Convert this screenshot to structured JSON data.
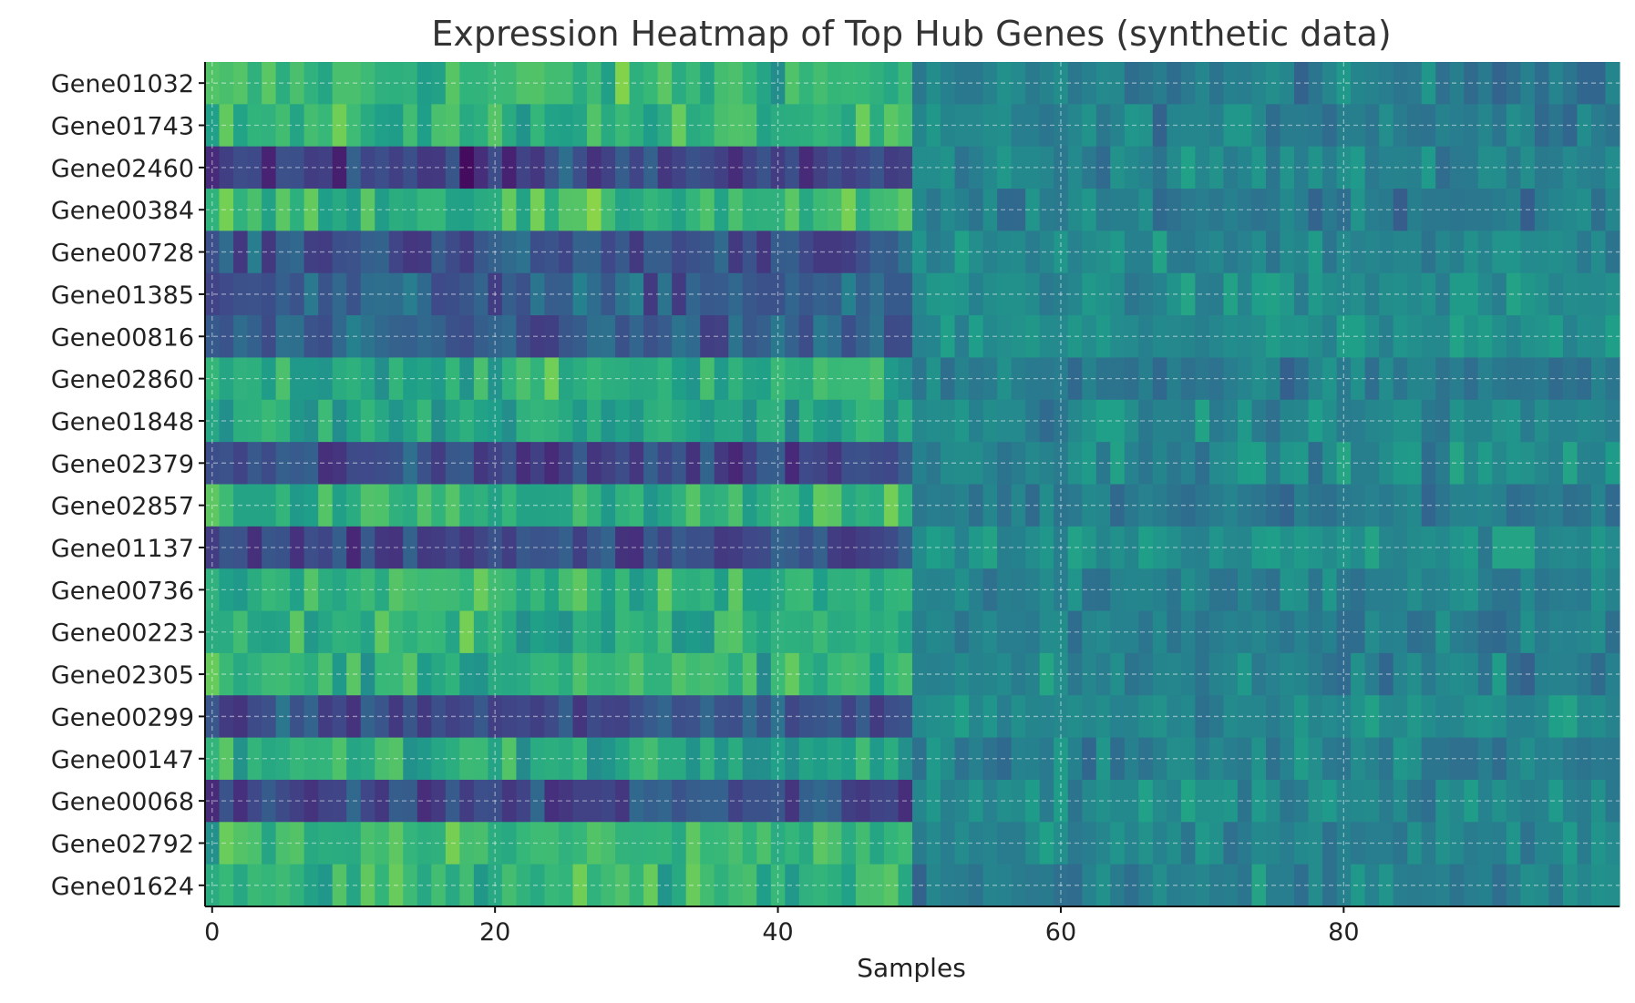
{
  "chart_data": {
    "type": "heatmap",
    "title": "Expression Heatmap of Top Hub Genes (synthetic data)",
    "xlabel": "Samples",
    "ylabel": "",
    "xlim": [
      -0.5,
      99.5
    ],
    "xticks": [
      0,
      20,
      40,
      60,
      80
    ],
    "grid": true,
    "colormap": "viridis",
    "n_samples": 100,
    "genes": [
      "Gene01032",
      "Gene01743",
      "Gene02460",
      "Gene00384",
      "Gene00728",
      "Gene01385",
      "Gene00816",
      "Gene02860",
      "Gene01848",
      "Gene02379",
      "Gene02857",
      "Gene01137",
      "Gene00736",
      "Gene00223",
      "Gene02305",
      "Gene00299",
      "Gene00147",
      "Gene00068",
      "Gene02792",
      "Gene01624"
    ],
    "group_split_sample": 50,
    "group_means": {
      "Gene01032": [
        0.66,
        0.42
      ],
      "Gene01743": [
        0.64,
        0.44
      ],
      "Gene02460": [
        0.2,
        0.46
      ],
      "Gene00384": [
        0.66,
        0.42
      ],
      "Gene00728": [
        0.26,
        0.46
      ],
      "Gene01385": [
        0.3,
        0.48
      ],
      "Gene00816": [
        0.28,
        0.48
      ],
      "Gene02860": [
        0.62,
        0.42
      ],
      "Gene01848": [
        0.58,
        0.46
      ],
      "Gene02379": [
        0.22,
        0.48
      ],
      "Gene02857": [
        0.64,
        0.42
      ],
      "Gene01137": [
        0.22,
        0.5
      ],
      "Gene00736": [
        0.64,
        0.44
      ],
      "Gene00223": [
        0.62,
        0.44
      ],
      "Gene02305": [
        0.64,
        0.44
      ],
      "Gene00299": [
        0.24,
        0.48
      ],
      "Gene00147": [
        0.62,
        0.44
      ],
      "Gene00068": [
        0.24,
        0.48
      ],
      "Gene02792": [
        0.66,
        0.44
      ],
      "Gene01624": [
        0.64,
        0.44
      ]
    }
  }
}
